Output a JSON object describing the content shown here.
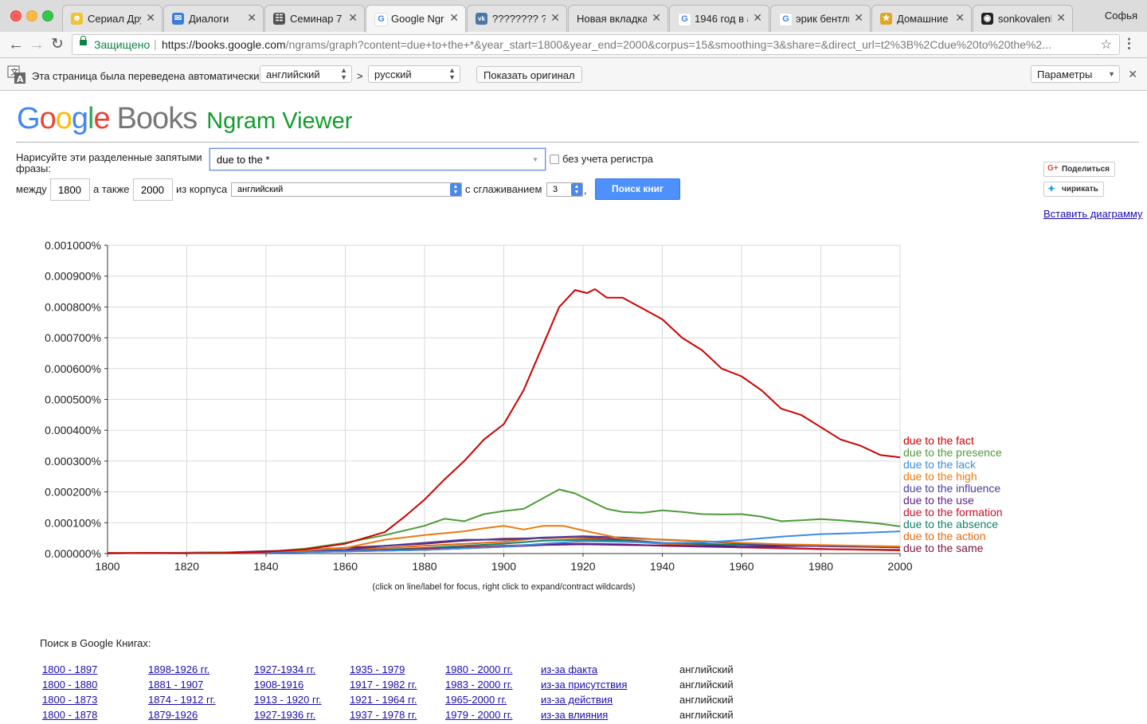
{
  "browser": {
    "tabs": [
      {
        "title": "Сериал Дру",
        "favicon": "smiley-icon",
        "active": false
      },
      {
        "title": "Диалоги",
        "favicon": "chat-icon",
        "active": false
      },
      {
        "title": "Семинар 7 ·",
        "favicon": "book-icon",
        "active": false
      },
      {
        "title": "Google Ngra",
        "favicon": "google-icon",
        "active": true
      },
      {
        "title": "???????? ???",
        "favicon": "vk-icon",
        "active": false
      },
      {
        "title": "Новая вкладка",
        "favicon": "",
        "active": false
      },
      {
        "title": "1946 год в а",
        "favicon": "google-icon",
        "active": false
      },
      {
        "title": "эрик бентли",
        "favicon": "google-icon",
        "active": false
      },
      {
        "title": "Домашние з",
        "favicon": "star-badge-icon",
        "active": false
      },
      {
        "title": "sonkovalenk",
        "favicon": "github-icon",
        "active": false
      }
    ],
    "profile_name": "Софья",
    "secure_label": "Защищено",
    "url_host": "https://books.google.com",
    "url_rest": "/ngrams/graph?content=due+to+the+*&year_start=1800&year_end=2000&corpus=15&smoothing=3&share=&direct_url=t2%3B%2Cdue%20to%20the%2..."
  },
  "translate_bar": {
    "message": "Эта страница была переведена автоматически",
    "from_lang": "английский",
    "separator": ">",
    "to_lang": "русский",
    "show_original": "Показать оригинал",
    "options": "Параметры"
  },
  "header": {
    "books": "Books",
    "ngram_viewer": "Ngram Viewer"
  },
  "form": {
    "phrase_label": "Нарисуйте эти разделенные запятыми фразы:",
    "query": "due to the *",
    "case_insensitive": "без учета регистра",
    "between": "между",
    "year_start": "1800",
    "and_also": "а также",
    "year_end": "2000",
    "from_corpus": "из корпуса",
    "corpus": "английский",
    "with_smoothing": "с сглаживанием",
    "smoothing": "3",
    "comma": ",",
    "search_button": "Поиск книг"
  },
  "share": {
    "gplus": "Поделиться",
    "twitter": "чирикать",
    "embed": "Вставить диаграмму"
  },
  "chart_data": {
    "type": "line",
    "x_range": [
      1800,
      2000
    ],
    "y_range": [
      0,
      0.001
    ],
    "y_ticks": [
      "0.000000%",
      "0.000100%",
      "0.000200%",
      "0.000300%",
      "0.000400%",
      "0.000500%",
      "0.000600%",
      "0.000700%",
      "0.000800%",
      "0.000900%",
      "0.001000%"
    ],
    "x_ticks": [
      "1800",
      "1820",
      "1840",
      "1860",
      "1880",
      "1900",
      "1920",
      "1940",
      "1960",
      "1980",
      "2000"
    ],
    "grid": true,
    "legend": "right-end-labels",
    "hint": "(click on line/label for focus, right click to expand/contract wildcards)",
    "series": [
      {
        "name": "due to the fact",
        "color": "#cc0000",
        "points": [
          [
            1800,
            2e-06
          ],
          [
            1820,
            1e-06
          ],
          [
            1830,
            2e-06
          ],
          [
            1840,
            6e-06
          ],
          [
            1850,
            1.4e-05
          ],
          [
            1860,
            3.2e-05
          ],
          [
            1870,
            7e-05
          ],
          [
            1875,
            0.00012
          ],
          [
            1880,
            0.000175
          ],
          [
            1885,
            0.00024
          ],
          [
            1890,
            0.0003
          ],
          [
            1895,
            0.00037
          ],
          [
            1900,
            0.00042
          ],
          [
            1905,
            0.00053
          ],
          [
            1910,
            0.00068
          ],
          [
            1914,
            0.0008
          ],
          [
            1918,
            0.000855
          ],
          [
            1921,
            0.000845
          ],
          [
            1923,
            0.000858
          ],
          [
            1926,
            0.00083
          ],
          [
            1930,
            0.00083
          ],
          [
            1935,
            0.000795
          ],
          [
            1940,
            0.00076
          ],
          [
            1945,
            0.0007
          ],
          [
            1950,
            0.00066
          ],
          [
            1955,
            0.0006
          ],
          [
            1960,
            0.000575
          ],
          [
            1965,
            0.00053
          ],
          [
            1970,
            0.00047
          ],
          [
            1975,
            0.00045
          ],
          [
            1980,
            0.00041
          ],
          [
            1985,
            0.00037
          ],
          [
            1990,
            0.00035
          ],
          [
            1995,
            0.00032
          ],
          [
            2000,
            0.000312
          ]
        ]
      },
      {
        "name": "due to the presence",
        "color": "#4e9a3a",
        "points": [
          [
            1800,
            2e-06
          ],
          [
            1820,
            1e-06
          ],
          [
            1840,
            6e-06
          ],
          [
            1850,
            1.6e-05
          ],
          [
            1860,
            3.5e-05
          ],
          [
            1870,
            6e-05
          ],
          [
            1880,
            9e-05
          ],
          [
            1885,
            0.000113
          ],
          [
            1890,
            0.000105
          ],
          [
            1895,
            0.000128
          ],
          [
            1900,
            0.000138
          ],
          [
            1905,
            0.000145
          ],
          [
            1910,
            0.00018
          ],
          [
            1914,
            0.000208
          ],
          [
            1918,
            0.000195
          ],
          [
            1922,
            0.00017
          ],
          [
            1926,
            0.000145
          ],
          [
            1930,
            0.000135
          ],
          [
            1935,
            0.000132
          ],
          [
            1940,
            0.00014
          ],
          [
            1945,
            0.000135
          ],
          [
            1950,
            0.000128
          ],
          [
            1955,
            0.000127
          ],
          [
            1960,
            0.000128
          ],
          [
            1965,
            0.00012
          ],
          [
            1970,
            0.000105
          ],
          [
            1975,
            0.000108
          ],
          [
            1980,
            0.000112
          ],
          [
            1985,
            0.000108
          ],
          [
            1990,
            0.000103
          ],
          [
            1995,
            9.7e-05
          ],
          [
            2000,
            8.8e-05
          ]
        ]
      },
      {
        "name": "due to the lack",
        "color": "#3d8ce0",
        "points": [
          [
            1800,
            1e-06
          ],
          [
            1840,
            3e-06
          ],
          [
            1860,
            7e-06
          ],
          [
            1880,
            1.2e-05
          ],
          [
            1900,
            2.2e-05
          ],
          [
            1910,
            3.2e-05
          ],
          [
            1920,
            4e-05
          ],
          [
            1930,
            3.8e-05
          ],
          [
            1940,
            3.4e-05
          ],
          [
            1950,
            3.6e-05
          ],
          [
            1960,
            4.4e-05
          ],
          [
            1970,
            5.5e-05
          ],
          [
            1980,
            6.3e-05
          ],
          [
            1990,
            6.7e-05
          ],
          [
            2000,
            7.2e-05
          ]
        ]
      },
      {
        "name": "due to the high",
        "color": "#ea7a0f",
        "points": [
          [
            1800,
            1e-06
          ],
          [
            1840,
            4e-06
          ],
          [
            1860,
            1.8e-05
          ],
          [
            1870,
            4.5e-05
          ],
          [
            1880,
            6e-05
          ],
          [
            1890,
            7.2e-05
          ],
          [
            1895,
            8.2e-05
          ],
          [
            1900,
            9e-05
          ],
          [
            1905,
            7.8e-05
          ],
          [
            1910,
            9e-05
          ],
          [
            1915,
            9e-05
          ],
          [
            1920,
            7.5e-05
          ],
          [
            1930,
            4.8e-05
          ],
          [
            1940,
            4.6e-05
          ],
          [
            1950,
            4e-05
          ],
          [
            1960,
            3.5e-05
          ],
          [
            1970,
            3e-05
          ],
          [
            1980,
            2.8e-05
          ],
          [
            1990,
            2.5e-05
          ],
          [
            2000,
            2.3e-05
          ]
        ]
      },
      {
        "name": "due to the influence",
        "color": "#4a3b9a",
        "points": [
          [
            1800,
            1e-06
          ],
          [
            1840,
            4e-06
          ],
          [
            1860,
            1.2e-05
          ],
          [
            1870,
            2.5e-05
          ],
          [
            1880,
            3.5e-05
          ],
          [
            1890,
            4.5e-05
          ],
          [
            1900,
            4.5e-05
          ],
          [
            1910,
            5.2e-05
          ],
          [
            1920,
            5.6e-05
          ],
          [
            1930,
            5.2e-05
          ],
          [
            1940,
            4.5e-05
          ],
          [
            1950,
            4e-05
          ],
          [
            1960,
            3.2e-05
          ],
          [
            1970,
            2.8e-05
          ],
          [
            1980,
            2.4e-05
          ],
          [
            1990,
            2.2e-05
          ],
          [
            2000,
            2e-05
          ]
        ]
      },
      {
        "name": "due to the use",
        "color": "#5c1d8a",
        "points": [
          [
            1800,
            1e-06
          ],
          [
            1840,
            3e-06
          ],
          [
            1860,
            7e-06
          ],
          [
            1880,
            1.2e-05
          ],
          [
            1900,
            2.2e-05
          ],
          [
            1910,
            2.8e-05
          ],
          [
            1920,
            3e-05
          ],
          [
            1930,
            2.8e-05
          ],
          [
            1940,
            2.6e-05
          ],
          [
            1950,
            2.4e-05
          ],
          [
            1960,
            2.2e-05
          ],
          [
            1970,
            2.4e-05
          ],
          [
            1980,
            2.5e-05
          ],
          [
            1990,
            2.3e-05
          ],
          [
            2000,
            2e-05
          ]
        ]
      },
      {
        "name": "due to the formation",
        "color": "#c4122b",
        "points": [
          [
            1800,
            1e-06
          ],
          [
            1840,
            3e-06
          ],
          [
            1860,
            8e-06
          ],
          [
            1880,
            1.5e-05
          ],
          [
            1900,
            2.5e-05
          ],
          [
            1910,
            3e-05
          ],
          [
            1920,
            3.2e-05
          ],
          [
            1930,
            3e-05
          ],
          [
            1940,
            2.5e-05
          ],
          [
            1960,
            2e-05
          ],
          [
            1980,
            1.5e-05
          ],
          [
            2000,
            1.2e-05
          ]
        ]
      },
      {
        "name": "due to the absence",
        "color": "#13806a",
        "points": [
          [
            1800,
            1e-06
          ],
          [
            1840,
            3e-06
          ],
          [
            1860,
            8e-06
          ],
          [
            1880,
            1.8e-05
          ],
          [
            1900,
            3.2e-05
          ],
          [
            1910,
            4.2e-05
          ],
          [
            1920,
            4.5e-05
          ],
          [
            1930,
            4.2e-05
          ],
          [
            1940,
            3.5e-05
          ],
          [
            1960,
            2.8e-05
          ],
          [
            1980,
            2.5e-05
          ],
          [
            2000,
            2.2e-05
          ]
        ]
      },
      {
        "name": "due to the action",
        "color": "#e0690f",
        "points": [
          [
            1800,
            1e-06
          ],
          [
            1840,
            4e-06
          ],
          [
            1860,
            1.2e-05
          ],
          [
            1880,
            2.5e-05
          ],
          [
            1900,
            3.8e-05
          ],
          [
            1910,
            5.2e-05
          ],
          [
            1920,
            5e-05
          ],
          [
            1930,
            4e-05
          ],
          [
            1940,
            3.2e-05
          ],
          [
            1950,
            2.5e-05
          ],
          [
            1960,
            2e-05
          ],
          [
            1980,
            1.4e-05
          ],
          [
            2000,
            1.1e-05
          ]
        ]
      },
      {
        "name": "due to the same",
        "color": "#7a1540",
        "points": [
          [
            1800,
            1e-06
          ],
          [
            1830,
            4e-06
          ],
          [
            1850,
            1.2e-05
          ],
          [
            1870,
            2.5e-05
          ],
          [
            1880,
            3.2e-05
          ],
          [
            1890,
            4.2e-05
          ],
          [
            1900,
            4.8e-05
          ],
          [
            1910,
            5e-05
          ],
          [
            1920,
            5.2e-05
          ],
          [
            1930,
            4.5e-05
          ],
          [
            1940,
            3.5e-05
          ],
          [
            1950,
            2.8e-05
          ],
          [
            1960,
            2.2e-05
          ],
          [
            1980,
            1.5e-05
          ],
          [
            2000,
            1e-05
          ]
        ]
      }
    ]
  },
  "results": {
    "title": "Поиск в Google Книгах:",
    "rows": [
      {
        "cells": [
          "1800 - 1897",
          "1898-1926 гг.",
          "1927-1934 гг.",
          "1935 - 1979",
          "1980 - 2000 гг.",
          "из-за факта"
        ],
        "lang": "английский"
      },
      {
        "cells": [
          "1800 - 1880",
          "1881 - 1907",
          "1908-1916",
          "1917 - 1982 гг.",
          "1983 - 2000 гг.",
          "из-за присутствия"
        ],
        "lang": "английский"
      },
      {
        "cells": [
          "1800 - 1873",
          "1874 - 1912 гг.",
          "1913 - 1920 гг.",
          "1921 - 1964 гг.",
          "1965-2000 гг.",
          "из-за действия"
        ],
        "lang": "английский"
      },
      {
        "cells": [
          "1800 - 1878",
          "1879-1926",
          "1927-1936 гг.",
          "1937 - 1978 гг.",
          "1979 - 2000 гг.",
          "из-за влияния"
        ],
        "lang": "английский"
      }
    ]
  }
}
